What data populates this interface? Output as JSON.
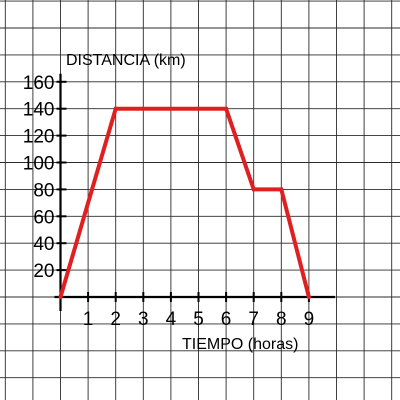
{
  "chart_data": {
    "type": "line",
    "title": "",
    "xlabel": "TIEMPO (horas)",
    "ylabel": "DISTANCIA (km)",
    "xlim": [
      0,
      9
    ],
    "ylim": [
      0,
      160
    ],
    "x_ticks": [
      1,
      2,
      3,
      4,
      5,
      6,
      7,
      8,
      9
    ],
    "y_ticks": [
      20,
      40,
      60,
      80,
      100,
      120,
      140,
      160
    ],
    "grid": true,
    "series": [
      {
        "color": "#e02020",
        "points": [
          {
            "x": 0,
            "y": 0
          },
          {
            "x": 2,
            "y": 140
          },
          {
            "x": 6,
            "y": 140
          },
          {
            "x": 7,
            "y": 80
          },
          {
            "x": 8,
            "y": 80
          },
          {
            "x": 9,
            "y": 0
          }
        ]
      }
    ]
  }
}
